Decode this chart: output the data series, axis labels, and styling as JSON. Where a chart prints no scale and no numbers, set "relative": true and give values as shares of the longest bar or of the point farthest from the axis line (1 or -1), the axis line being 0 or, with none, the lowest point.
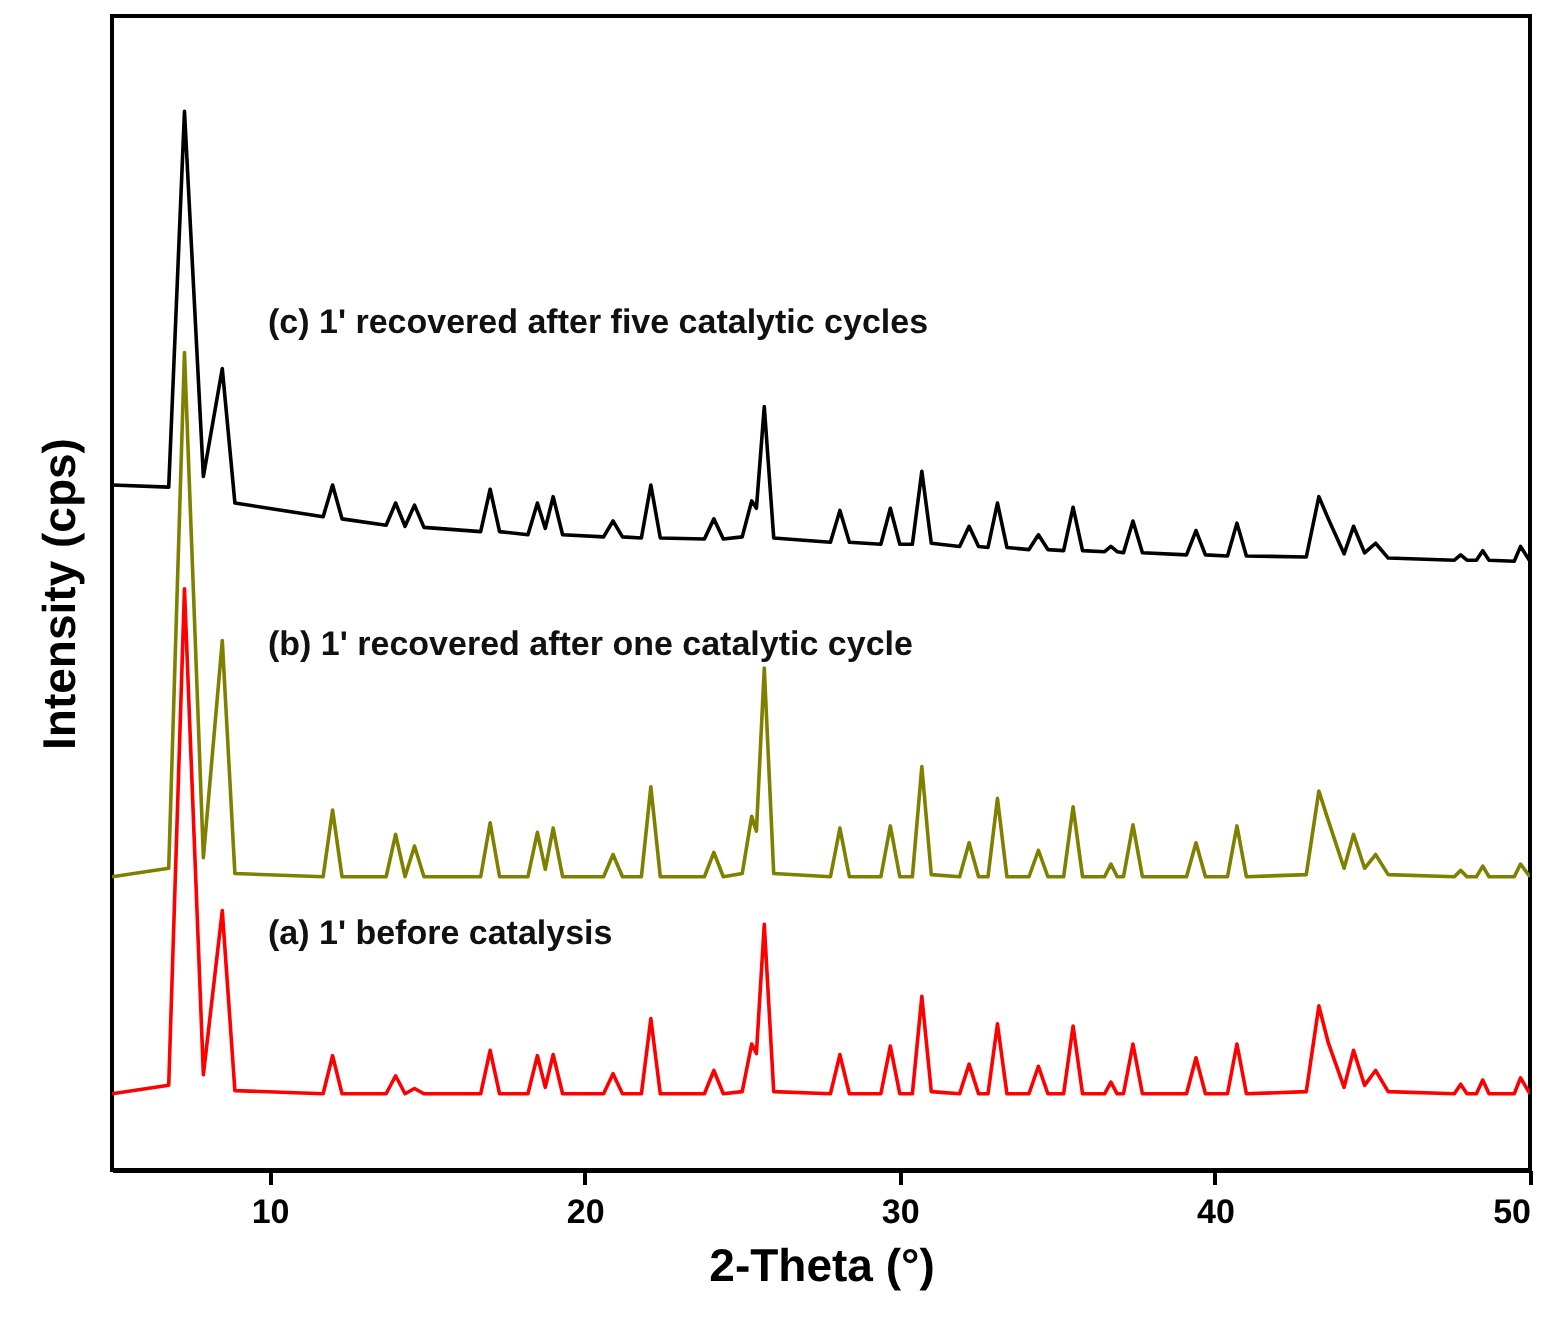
{
  "chart_data": {
    "type": "line",
    "xlabel": "2-Theta (°)",
    "ylabel": "Intensity (cps)",
    "relative": true,
    "tick_labels": "x",
    "xlim": [
      5,
      50
    ],
    "xticks": [
      10,
      20,
      30,
      40,
      50
    ],
    "x": [
      5,
      6.8,
      7.3,
      7.9,
      8.5,
      8.9,
      11.7,
      12.0,
      12.3,
      13.7,
      14.0,
      14.3,
      14.6,
      14.9,
      16.7,
      17.0,
      17.3,
      18.2,
      18.5,
      18.75,
      19.0,
      19.3,
      20.6,
      20.9,
      21.2,
      21.8,
      22.1,
      22.4,
      23.8,
      24.1,
      24.4,
      25.0,
      25.3,
      25.45,
      25.7,
      26.0,
      27.8,
      28.1,
      28.4,
      29.4,
      29.7,
      30.0,
      30.4,
      30.7,
      31.0,
      31.9,
      32.2,
      32.5,
      32.8,
      33.1,
      33.4,
      34.1,
      34.4,
      34.7,
      35.2,
      35.5,
      35.8,
      36.5,
      36.7,
      36.9,
      37.1,
      37.4,
      37.7,
      39.1,
      39.4,
      39.7,
      40.4,
      40.7,
      41.0,
      42.9,
      43.3,
      43.6,
      44.1,
      44.4,
      44.75,
      45.1,
      45.5,
      47.6,
      47.8,
      48.0,
      48.3,
      48.5,
      48.7,
      49.5,
      49.7,
      50
    ],
    "series": [
      {
        "name": "(c) 1' recovered after five catalytic cycles",
        "color": "#000000",
        "values": [
          0.647,
          0.645,
          1.0,
          0.655,
          0.757,
          0.63,
          0.617,
          0.647,
          0.615,
          0.609,
          0.63,
          0.608,
          0.628,
          0.607,
          0.603,
          0.643,
          0.603,
          0.6,
          0.63,
          0.606,
          0.636,
          0.6,
          0.598,
          0.613,
          0.598,
          0.597,
          0.647,
          0.597,
          0.596,
          0.615,
          0.596,
          0.598,
          0.632,
          0.625,
          0.721,
          0.597,
          0.593,
          0.623,
          0.593,
          0.591,
          0.625,
          0.591,
          0.591,
          0.66,
          0.592,
          0.589,
          0.608,
          0.589,
          0.588,
          0.63,
          0.588,
          0.586,
          0.6,
          0.586,
          0.585,
          0.626,
          0.585,
          0.584,
          0.589,
          0.584,
          0.583,
          0.613,
          0.583,
          0.581,
          0.604,
          0.581,
          0.58,
          0.611,
          0.58,
          0.579,
          0.636,
          0.615,
          0.582,
          0.608,
          0.583,
          0.592,
          0.578,
          0.576,
          0.581,
          0.576,
          0.576,
          0.585,
          0.576,
          0.575,
          0.589,
          0.575
        ]
      },
      {
        "name": "(b) 1' recovered after one catalytic cycle",
        "color": "#808000",
        "values": [
          0.277,
          0.285,
          0.772,
          0.295,
          0.5,
          0.28,
          0.277,
          0.34,
          0.277,
          0.277,
          0.317,
          0.277,
          0.306,
          0.277,
          0.277,
          0.328,
          0.277,
          0.277,
          0.319,
          0.284,
          0.323,
          0.277,
          0.277,
          0.298,
          0.277,
          0.277,
          0.362,
          0.277,
          0.277,
          0.3,
          0.277,
          0.28,
          0.334,
          0.32,
          0.474,
          0.28,
          0.277,
          0.323,
          0.277,
          0.277,
          0.325,
          0.277,
          0.277,
          0.381,
          0.279,
          0.277,
          0.309,
          0.277,
          0.277,
          0.351,
          0.277,
          0.277,
          0.302,
          0.277,
          0.277,
          0.343,
          0.277,
          0.277,
          0.289,
          0.277,
          0.277,
          0.326,
          0.277,
          0.277,
          0.309,
          0.277,
          0.277,
          0.325,
          0.277,
          0.279,
          0.358,
          0.33,
          0.285,
          0.317,
          0.285,
          0.298,
          0.279,
          0.277,
          0.283,
          0.277,
          0.277,
          0.287,
          0.277,
          0.277,
          0.289,
          0.277
        ]
      },
      {
        "name": "(a) 1' before catalysis",
        "color": "#ff0000",
        "values": [
          0.072,
          0.08,
          0.549,
          0.09,
          0.245,
          0.075,
          0.072,
          0.108,
          0.072,
          0.072,
          0.089,
          0.072,
          0.077,
          0.072,
          0.072,
          0.113,
          0.072,
          0.072,
          0.108,
          0.078,
          0.109,
          0.072,
          0.072,
          0.091,
          0.072,
          0.072,
          0.143,
          0.072,
          0.072,
          0.094,
          0.072,
          0.074,
          0.119,
          0.11,
          0.232,
          0.074,
          0.072,
          0.109,
          0.072,
          0.072,
          0.117,
          0.072,
          0.072,
          0.164,
          0.074,
          0.072,
          0.1,
          0.072,
          0.072,
          0.138,
          0.072,
          0.072,
          0.098,
          0.072,
          0.072,
          0.136,
          0.072,
          0.072,
          0.083,
          0.072,
          0.072,
          0.119,
          0.072,
          0.072,
          0.106,
          0.072,
          0.072,
          0.119,
          0.072,
          0.074,
          0.155,
          0.12,
          0.078,
          0.113,
          0.08,
          0.094,
          0.074,
          0.072,
          0.081,
          0.072,
          0.072,
          0.085,
          0.072,
          0.072,
          0.087,
          0.072
        ]
      }
    ]
  }
}
